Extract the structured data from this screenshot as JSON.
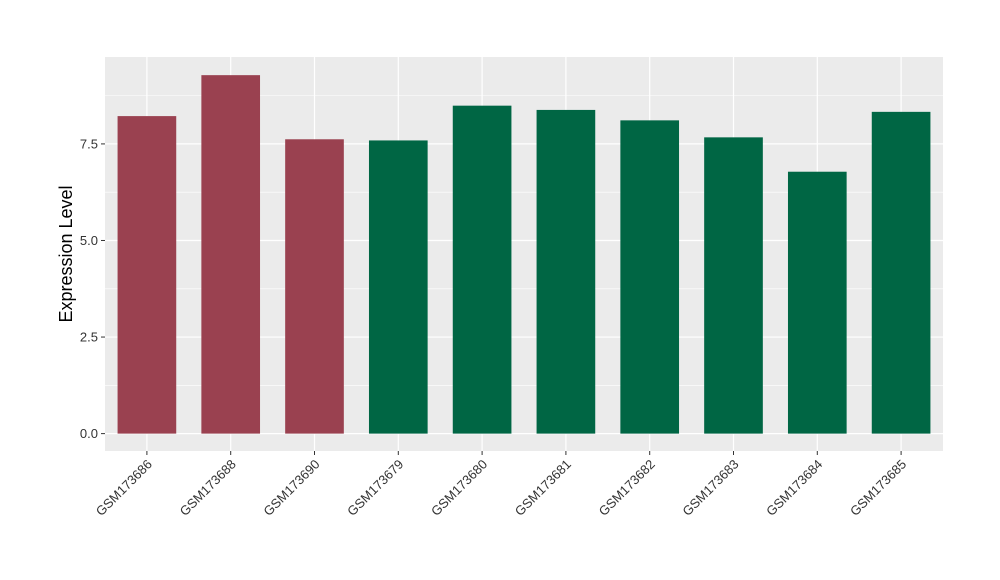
{
  "chart_data": {
    "type": "bar",
    "title": "",
    "xlabel": "",
    "ylabel": "Expression Level",
    "categories": [
      "GSM173686",
      "GSM173688",
      "GSM173690",
      "GSM173679",
      "GSM173680",
      "GSM173681",
      "GSM173682",
      "GSM173683",
      "GSM173684",
      "GSM173685"
    ],
    "values": [
      8.22,
      9.28,
      7.62,
      7.59,
      8.49,
      8.38,
      8.11,
      7.67,
      6.78,
      8.33
    ],
    "groups": [
      1,
      1,
      1,
      2,
      2,
      2,
      2,
      2,
      2,
      2
    ],
    "group_colors": {
      "1": "#9a4150",
      "2": "#006644"
    },
    "ylim": [
      -0.45,
      9.75
    ],
    "yticks": [
      0,
      2.5,
      5,
      7.5
    ],
    "ytick_labels": [
      "0.0",
      "2.5",
      "5.0",
      "7.5"
    ],
    "grid": true,
    "panel_background": "#ebebeb",
    "grid_color": "#ffffff"
  }
}
